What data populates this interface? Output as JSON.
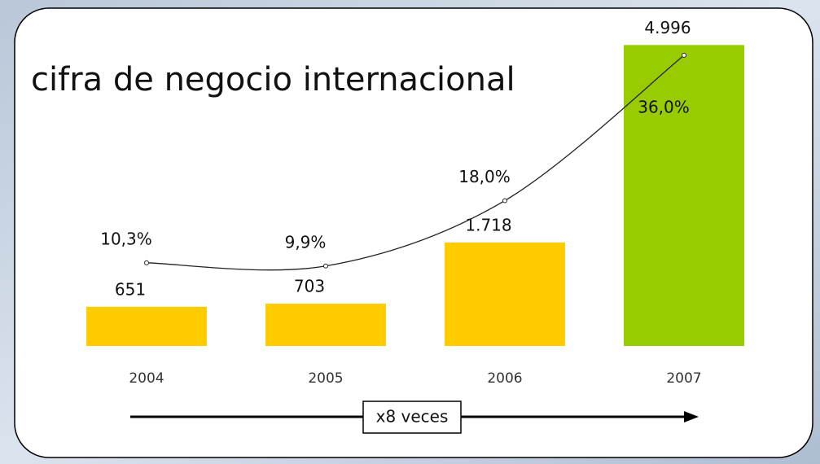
{
  "chart_data": {
    "type": "bar-line",
    "title": "cifra de negocio internacional",
    "categories": [
      "2004",
      "2005",
      "2006",
      "2007"
    ],
    "series": [
      {
        "type": "bar",
        "colors": [
          "#ffcc00",
          "#ffcc00",
          "#ffcc00",
          "#99cc00"
        ],
        "values": [
          651,
          703,
          1718,
          4996
        ],
        "value_labels": [
          "651",
          "703",
          "1.718",
          "4.996"
        ]
      },
      {
        "type": "line",
        "axis": "y2",
        "color": "#222222",
        "values": [
          10.3,
          9.9,
          18.0,
          36.0
        ],
        "value_labels": [
          "10,3%",
          "9,9%",
          "18,0%",
          "36,0%"
        ]
      }
    ],
    "ylim": [
      0,
      5000
    ],
    "y2lim": [
      0,
      37.3
    ],
    "annotation": "x8 veces"
  }
}
